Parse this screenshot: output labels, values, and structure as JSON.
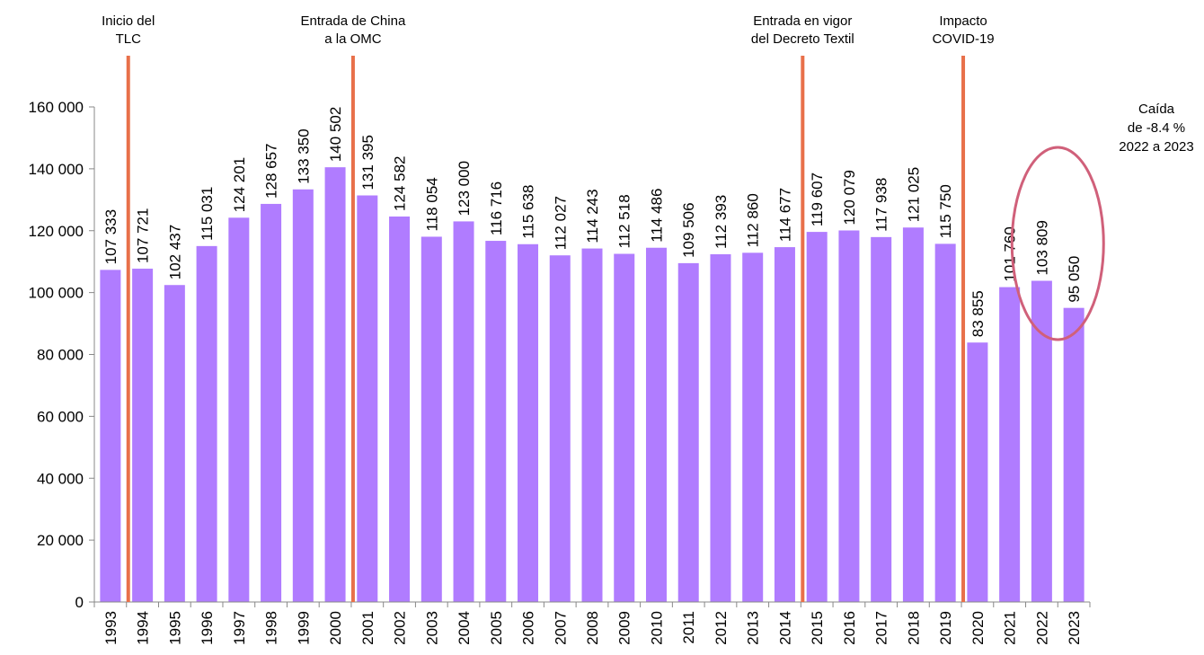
{
  "chart_data": {
    "type": "bar",
    "title": "",
    "xlabel": "",
    "ylabel": "",
    "ylim": [
      0,
      160000
    ],
    "yticks": [
      0,
      20000,
      40000,
      60000,
      80000,
      100000,
      120000,
      140000,
      160000
    ],
    "ytick_labels": [
      "0",
      "20 000",
      "40 000",
      "60 000",
      "80 000",
      "100 000",
      "120 000",
      "140 000",
      "160 000"
    ],
    "grid": false,
    "bar_color": "#b07cff",
    "marker_color": "#e8704a",
    "highlight_color": "#d0607a",
    "categories": [
      "1993",
      "1994",
      "1995",
      "1996",
      "1997",
      "1998",
      "1999",
      "2000",
      "2001",
      "2002",
      "2003",
      "2004",
      "2005",
      "2006",
      "2007",
      "2008",
      "2009",
      "2010",
      "2011",
      "2012",
      "2013",
      "2014",
      "2015",
      "2016",
      "2017",
      "2018",
      "2019",
      "2020",
      "2021",
      "2022",
      "2023"
    ],
    "values": [
      107333,
      107721,
      102437,
      115031,
      124201,
      128657,
      133350,
      140502,
      131395,
      124582,
      118054,
      123000,
      116716,
      115638,
      112027,
      114243,
      112518,
      114486,
      109506,
      112393,
      112860,
      114677,
      119607,
      120079,
      117938,
      121025,
      115750,
      83855,
      101760,
      103809,
      95050
    ],
    "value_labels": [
      "107 333",
      "107 721",
      "102 437",
      "115 031",
      "124 201",
      "128 657",
      "133 350",
      "140 502",
      "131 395",
      "124 582",
      "118 054",
      "123 000",
      "116 716",
      "115 638",
      "112 027",
      "114 243",
      "112 518",
      "114 486",
      "109 506",
      "112 393",
      "112 860",
      "114 677",
      "119 607",
      "120 079",
      "117 938",
      "121 025",
      "115 750",
      "83 855",
      "101 760",
      "103 809",
      "95 050"
    ],
    "events": [
      {
        "before_category": "1994",
        "lines": [
          "Inicio del",
          "TLC"
        ]
      },
      {
        "before_category": "2001",
        "lines": [
          "Entrada de China",
          "a la OMC"
        ]
      },
      {
        "before_category": "2015",
        "lines": [
          "Entrada en vigor",
          "del Decreto Textil"
        ]
      },
      {
        "before_category": "2020",
        "lines": [
          "Impacto",
          "COVID-19"
        ]
      }
    ],
    "highlight": {
      "categories": [
        "2022",
        "2023"
      ],
      "lines": [
        "Caída",
        "de -8.4 %",
        "2022 a 2023"
      ]
    }
  }
}
